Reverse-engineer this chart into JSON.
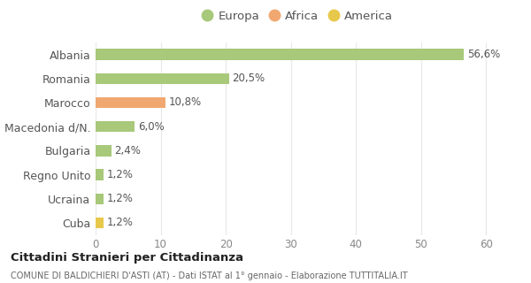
{
  "categories": [
    "Cuba",
    "Ucraina",
    "Regno Unito",
    "Bulgaria",
    "Macedonia d/N.",
    "Marocco",
    "Romania",
    "Albania"
  ],
  "values": [
    1.2,
    1.2,
    1.2,
    2.4,
    6.0,
    10.8,
    20.5,
    56.6
  ],
  "labels": [
    "1,2%",
    "1,2%",
    "1,2%",
    "2,4%",
    "6,0%",
    "10,8%",
    "20,5%",
    "56,6%"
  ],
  "colors": [
    "#e8c84a",
    "#a8c87a",
    "#a8c87a",
    "#a8c87a",
    "#a8c87a",
    "#f0a870",
    "#a8c87a",
    "#a8c87a"
  ],
  "legend": [
    {
      "label": "Europa",
      "color": "#a8c87a"
    },
    {
      "label": "Africa",
      "color": "#f0a870"
    },
    {
      "label": "America",
      "color": "#e8c84a"
    }
  ],
  "xlim": [
    0,
    62
  ],
  "xticks": [
    0,
    10,
    20,
    30,
    40,
    50,
    60
  ],
  "title": "Cittadini Stranieri per Cittadinanza",
  "subtitle": "COMUNE DI BALDICHIERI D'ASTI (AT) - Dati ISTAT al 1° gennaio - Elaborazione TUTTITALIA.IT",
  "background_color": "#ffffff",
  "grid_color": "#e8e8e8",
  "bar_height": 0.45,
  "label_fontsize": 8.5,
  "ytick_fontsize": 9,
  "xtick_fontsize": 8.5
}
